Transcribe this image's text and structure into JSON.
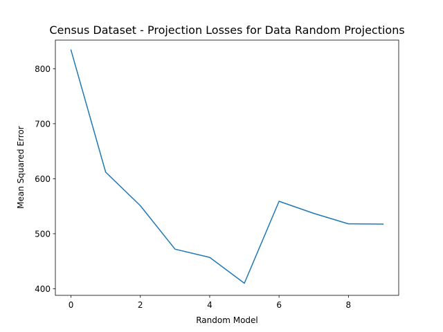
{
  "chart_data": {
    "type": "line",
    "title": "Census Dataset - Projection Losses for Data Random Projections",
    "xlabel": "Random Model",
    "ylabel": "Mean Squared Error",
    "xlim": [
      -0.45,
      9.45
    ],
    "ylim": [
      388,
      852
    ],
    "xticks": [
      0,
      2,
      4,
      6,
      8
    ],
    "yticks": [
      400,
      500,
      600,
      700,
      800
    ],
    "grid": false,
    "series": [
      {
        "x": [
          0,
          1,
          2,
          3,
          4,
          5,
          6,
          7,
          8,
          9
        ],
        "values": [
          834,
          612,
          551,
          472,
          457,
          410,
          559,
          537,
          518,
          517.5
        ],
        "color": "#1f77b4"
      }
    ]
  }
}
